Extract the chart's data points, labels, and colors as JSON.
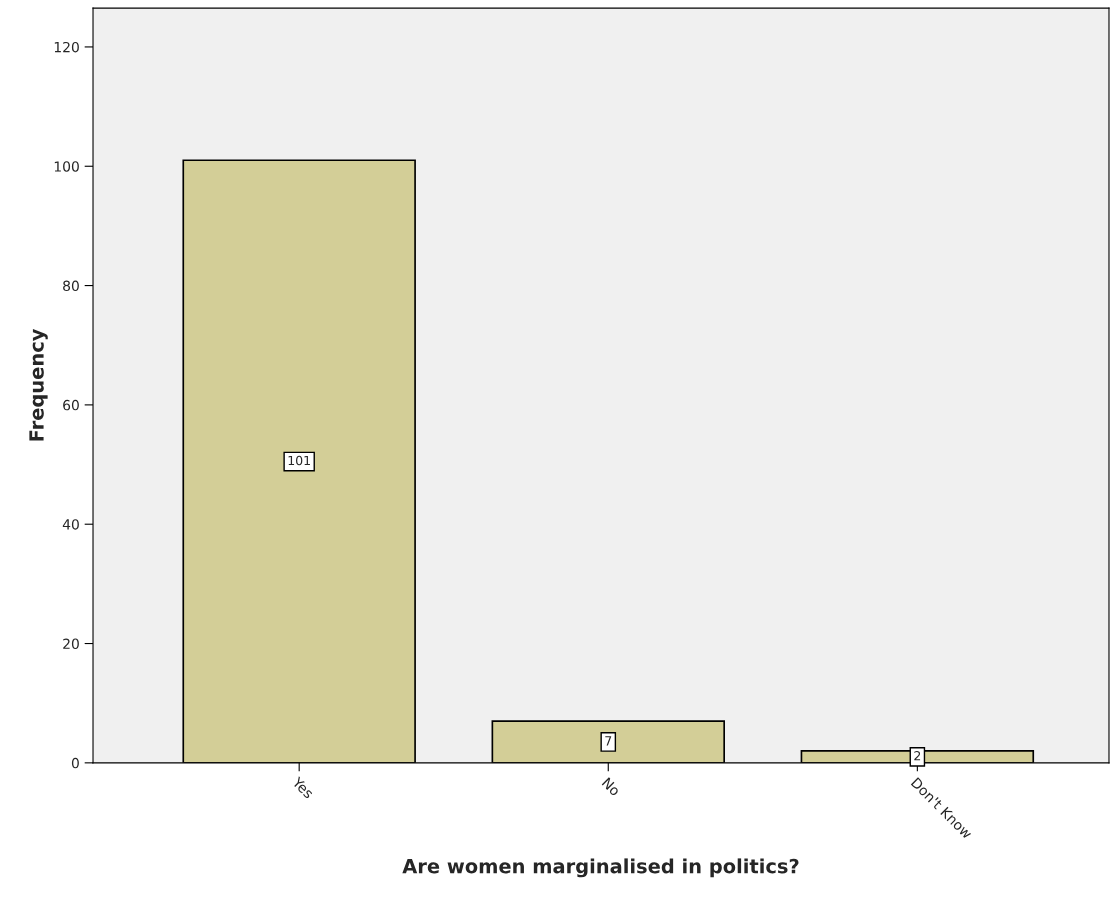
{
  "chart_data": {
    "type": "bar",
    "xlabel": "Are women marginalised in politics?",
    "ylabel": "Frequency",
    "categories": [
      "Yes",
      "No",
      "Don't Know"
    ],
    "values": [
      101,
      7,
      2
    ],
    "color": "#d3ce97",
    "ylim": [
      0,
      126.5
    ],
    "yticks": [
      0,
      20,
      40,
      60,
      80,
      100,
      120
    ],
    "grid": false,
    "data_labels": true
  }
}
